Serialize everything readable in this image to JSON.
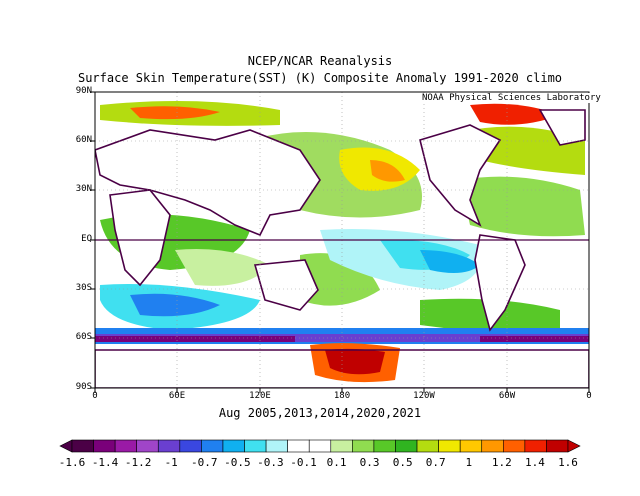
{
  "title_line1": "NCEP/NCAR Reanalysis",
  "title_line2": "Surface Skin Temperature(SST) (K) Composite Anomaly 1991-2020 climo",
  "credit": "NOAA Physical Sciences Laboratory",
  "caption": "Aug 2005,2013,2014,2020,2021",
  "lat_labels": [
    "90N",
    "60N",
    "30N",
    "EQ",
    "30S",
    "60S",
    "90S"
  ],
  "lon_labels": [
    "0",
    "60E",
    "120E",
    "180",
    "120W",
    "60W",
    "0"
  ],
  "colorbar": {
    "labels": [
      "-1.6",
      "-1.4",
      "-1.2",
      "-1",
      "-0.7",
      "-0.5",
      "-0.3",
      "-0.1",
      "0.1",
      "0.3",
      "0.5",
      "0.7",
      "1",
      "1.2",
      "1.4",
      "1.6"
    ],
    "colors": [
      "#4b0046",
      "#7a007a",
      "#9a1aa6",
      "#a045c8",
      "#6a3fd0",
      "#3a47e0",
      "#2080f0",
      "#10b0f0",
      "#40e0f0",
      "#b0f4f8",
      "#ffffff",
      "#ffffff",
      "#c8f0a0",
      "#90dc50",
      "#58c828",
      "#30b420",
      "#b4dc10",
      "#f0e800",
      "#ffc800",
      "#ff9800",
      "#ff6000",
      "#f02000",
      "#c00000"
    ]
  }
}
